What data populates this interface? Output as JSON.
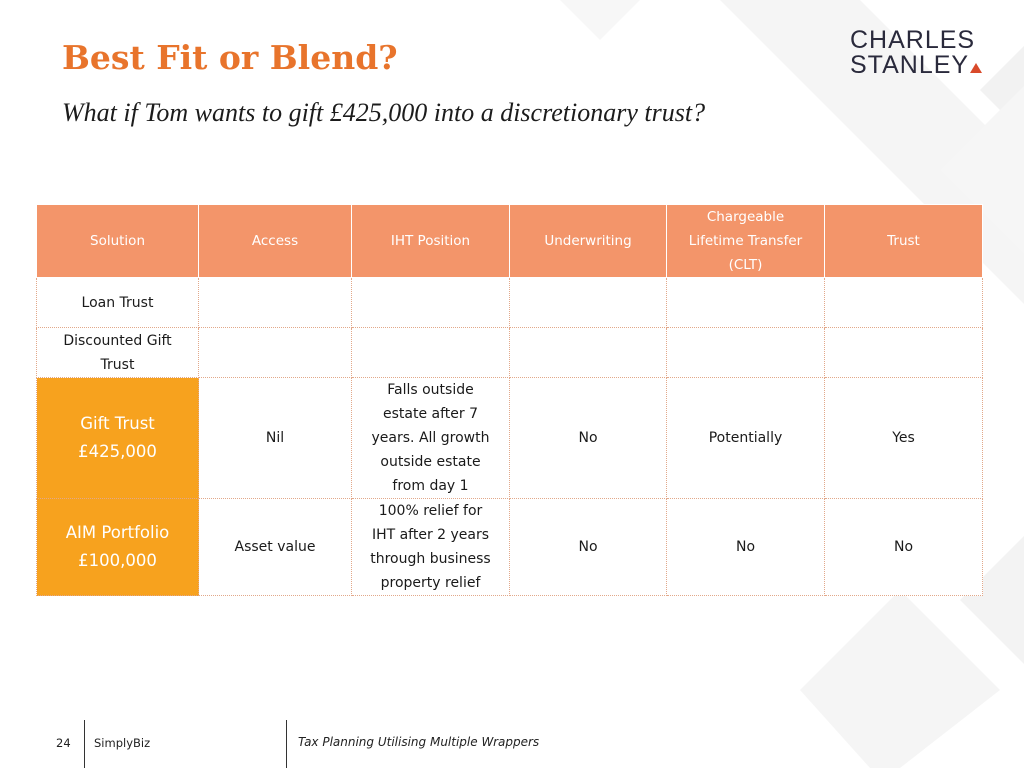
{
  "title": "Best Fit or Blend?",
  "subtitle": "What if Tom wants to gift £425,000 into a discretionary trust?",
  "logo": {
    "line1": "CHARLES",
    "line2": "STANLEY"
  },
  "colors": {
    "accent": "#E8742C",
    "header_fill": "#F3956A",
    "highlight_fill": "#F7A21E",
    "logo_triangle": "#D94A2A"
  },
  "table": {
    "headers": [
      "Solution",
      "Access",
      "IHT Position",
      "Underwriting",
      "Chargeable Lifetime Transfer (CLT)",
      "Trust"
    ],
    "rows": [
      {
        "cells": [
          "Loan Trust",
          "",
          "",
          "",
          "",
          ""
        ]
      },
      {
        "cells": [
          "Discounted Gift Trust",
          "",
          "",
          "",
          "",
          ""
        ]
      },
      {
        "solution_name": "Gift Trust",
        "solution_amount": "£425,000",
        "cells": [
          "",
          "Nil",
          "Falls outside estate after 7 years. All growth outside estate from day 1",
          "No",
          "Potentially",
          "Yes"
        ]
      },
      {
        "solution_name": "AIM Portfolio",
        "solution_amount": "£100,000",
        "cells": [
          "",
          "Asset value",
          "100% relief for IHT after 2 years through business property relief",
          "No",
          "No",
          "No"
        ]
      }
    ]
  },
  "footer": {
    "page_number": "24",
    "brand": "SimplyBiz",
    "topic": "Tax Planning Utilising Multiple Wrappers"
  }
}
